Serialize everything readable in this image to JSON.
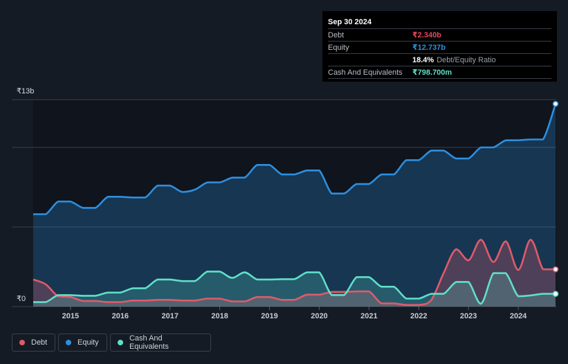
{
  "tooltip": {
    "date": "Sep 30 2024",
    "debt_label": "Debt",
    "debt_value": "₹2.340b",
    "equity_label": "Equity",
    "equity_value": "₹12.737b",
    "ratio_value": "18.4%",
    "ratio_label": "Debt/Equity Ratio",
    "cash_label": "Cash And Equivalents",
    "cash_value": "₹798.700m"
  },
  "legend": {
    "debt": "Debt",
    "equity": "Equity",
    "cash": "Cash And Equivalents"
  },
  "colors": {
    "debt": "#e05a6a",
    "equity": "#2d8fe0",
    "cash": "#5fe0c8",
    "background": "#151b25",
    "highlight": "#0f141d"
  },
  "chart_data": {
    "type": "area",
    "title": "",
    "xlabel": "",
    "ylabel": "",
    "y_top_label": "₹13b",
    "y_bottom_label": "₹0",
    "ylim": [
      0,
      13
    ],
    "xlim": [
      2014.25,
      2024.75
    ],
    "x_ticks": [
      2015,
      2016,
      2017,
      2018,
      2019,
      2020,
      2021,
      2022,
      2023,
      2024
    ],
    "x_tick_labels": [
      "2015",
      "2016",
      "2017",
      "2018",
      "2019",
      "2020",
      "2021",
      "2022",
      "2023",
      "2024"
    ],
    "grid_values": [
      0,
      5,
      10,
      13
    ],
    "highlight_from": 2014.25,
    "series": [
      {
        "name": "Equity",
        "key": "equity",
        "points": [
          [
            2014.25,
            5.8
          ],
          [
            2014.5,
            5.8
          ],
          [
            2014.75,
            6.6
          ],
          [
            2015.0,
            6.6
          ],
          [
            2015.25,
            6.2
          ],
          [
            2015.5,
            6.2
          ],
          [
            2015.75,
            6.9
          ],
          [
            2016.0,
            6.9
          ],
          [
            2016.25,
            6.85
          ],
          [
            2016.5,
            6.85
          ],
          [
            2016.75,
            7.6
          ],
          [
            2017.0,
            7.6
          ],
          [
            2017.25,
            7.2
          ],
          [
            2017.5,
            7.35
          ],
          [
            2017.75,
            7.8
          ],
          [
            2018.0,
            7.8
          ],
          [
            2018.25,
            8.1
          ],
          [
            2018.5,
            8.1
          ],
          [
            2018.75,
            8.9
          ],
          [
            2019.0,
            8.9
          ],
          [
            2019.25,
            8.3
          ],
          [
            2019.5,
            8.3
          ],
          [
            2019.75,
            8.55
          ],
          [
            2020.0,
            8.55
          ],
          [
            2020.25,
            7.1
          ],
          [
            2020.5,
            7.1
          ],
          [
            2020.75,
            7.7
          ],
          [
            2021.0,
            7.7
          ],
          [
            2021.25,
            8.3
          ],
          [
            2021.5,
            8.3
          ],
          [
            2021.75,
            9.2
          ],
          [
            2022.0,
            9.2
          ],
          [
            2022.25,
            9.8
          ],
          [
            2022.5,
            9.8
          ],
          [
            2022.75,
            9.3
          ],
          [
            2023.0,
            9.3
          ],
          [
            2023.25,
            10.0
          ],
          [
            2023.5,
            10.0
          ],
          [
            2023.75,
            10.45
          ],
          [
            2024.0,
            10.45
          ],
          [
            2024.25,
            10.5
          ],
          [
            2024.5,
            10.5
          ],
          [
            2024.75,
            12.737
          ]
        ]
      },
      {
        "name": "Debt",
        "key": "debt",
        "points": [
          [
            2014.25,
            1.7
          ],
          [
            2014.5,
            1.4
          ],
          [
            2014.75,
            0.65
          ],
          [
            2015.0,
            0.6
          ],
          [
            2015.25,
            0.35
          ],
          [
            2015.5,
            0.35
          ],
          [
            2015.75,
            0.28
          ],
          [
            2016.0,
            0.28
          ],
          [
            2016.25,
            0.38
          ],
          [
            2016.5,
            0.38
          ],
          [
            2016.75,
            0.42
          ],
          [
            2017.0,
            0.42
          ],
          [
            2017.25,
            0.38
          ],
          [
            2017.5,
            0.38
          ],
          [
            2017.75,
            0.5
          ],
          [
            2018.0,
            0.5
          ],
          [
            2018.25,
            0.32
          ],
          [
            2018.5,
            0.32
          ],
          [
            2018.75,
            0.6
          ],
          [
            2019.0,
            0.6
          ],
          [
            2019.25,
            0.42
          ],
          [
            2019.5,
            0.42
          ],
          [
            2019.75,
            0.75
          ],
          [
            2020.0,
            0.75
          ],
          [
            2020.25,
            0.92
          ],
          [
            2020.5,
            0.92
          ],
          [
            2020.75,
            0.95
          ],
          [
            2021.0,
            0.95
          ],
          [
            2021.25,
            0.2
          ],
          [
            2021.5,
            0.2
          ],
          [
            2021.75,
            0.1
          ],
          [
            2022.0,
            0.1
          ],
          [
            2022.25,
            0.4
          ],
          [
            2022.5,
            2.1
          ],
          [
            2022.75,
            3.6
          ],
          [
            2023.0,
            2.9
          ],
          [
            2023.25,
            4.2
          ],
          [
            2023.5,
            2.8
          ],
          [
            2023.75,
            4.1
          ],
          [
            2024.0,
            2.3
          ],
          [
            2024.25,
            4.2
          ],
          [
            2024.5,
            2.34
          ],
          [
            2024.75,
            2.34
          ]
        ]
      },
      {
        "name": "Cash And Equivalents",
        "key": "cash",
        "points": [
          [
            2014.25,
            0.28
          ],
          [
            2014.5,
            0.28
          ],
          [
            2014.75,
            0.72
          ],
          [
            2015.0,
            0.72
          ],
          [
            2015.25,
            0.68
          ],
          [
            2015.5,
            0.68
          ],
          [
            2015.75,
            0.88
          ],
          [
            2016.0,
            0.88
          ],
          [
            2016.25,
            1.15
          ],
          [
            2016.5,
            1.15
          ],
          [
            2016.75,
            1.7
          ],
          [
            2017.0,
            1.7
          ],
          [
            2017.25,
            1.6
          ],
          [
            2017.5,
            1.6
          ],
          [
            2017.75,
            2.2
          ],
          [
            2018.0,
            2.2
          ],
          [
            2018.25,
            1.8
          ],
          [
            2018.5,
            2.15
          ],
          [
            2018.75,
            1.7
          ],
          [
            2019.0,
            1.7
          ],
          [
            2019.25,
            1.72
          ],
          [
            2019.5,
            1.72
          ],
          [
            2019.75,
            2.15
          ],
          [
            2020.0,
            2.15
          ],
          [
            2020.25,
            0.72
          ],
          [
            2020.5,
            0.72
          ],
          [
            2020.75,
            1.85
          ],
          [
            2021.0,
            1.85
          ],
          [
            2021.25,
            1.25
          ],
          [
            2021.5,
            1.25
          ],
          [
            2021.75,
            0.5
          ],
          [
            2022.0,
            0.5
          ],
          [
            2022.25,
            0.8
          ],
          [
            2022.5,
            0.8
          ],
          [
            2022.75,
            1.55
          ],
          [
            2023.0,
            1.55
          ],
          [
            2023.25,
            0.18
          ],
          [
            2023.5,
            2.1
          ],
          [
            2023.75,
            2.1
          ],
          [
            2024.0,
            0.65
          ],
          [
            2024.25,
            0.7
          ],
          [
            2024.5,
            0.7988
          ],
          [
            2024.75,
            0.7988
          ]
        ]
      }
    ]
  }
}
